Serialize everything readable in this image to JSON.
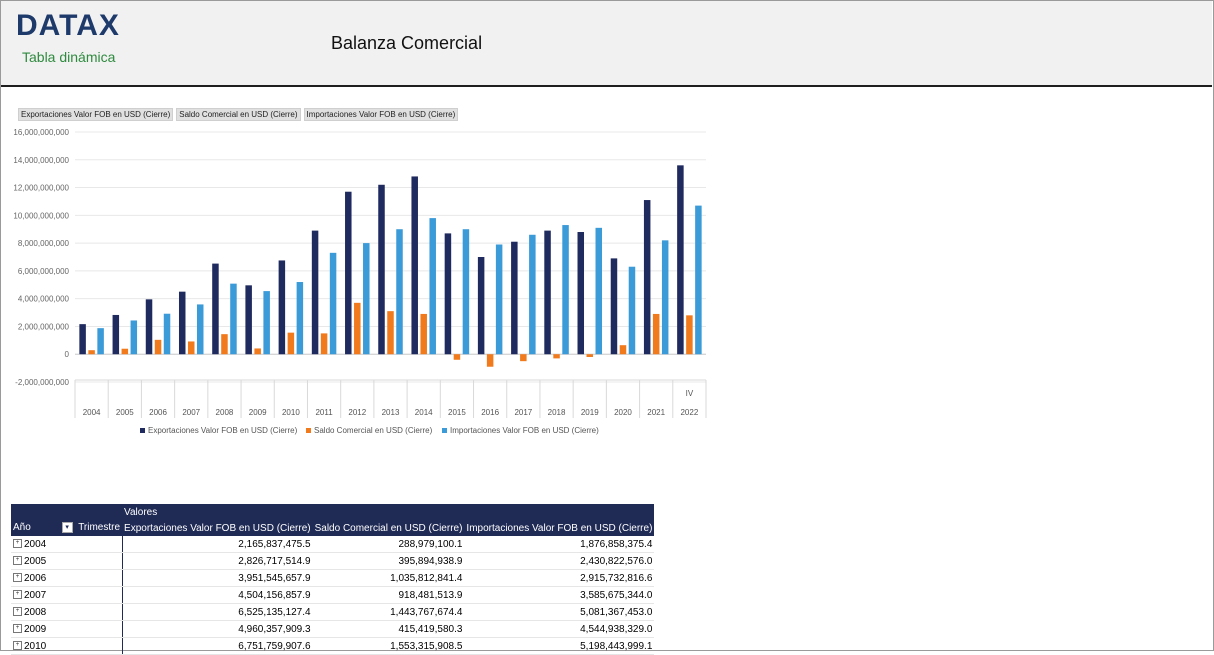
{
  "header": {
    "logo": "DATAX",
    "subtitle": "Tabla dinámica",
    "title": "Balanza Comercial"
  },
  "field_buttons": [
    "Exportaciones Valor FOB en USD (Cierre)",
    "Saldo Comercial en USD (Cierre)",
    "Importaciones Valor FOB en USD (Cierre)"
  ],
  "chart_data": {
    "type": "bar",
    "title": "",
    "xlabel": "",
    "ylabel": "",
    "ylim": [
      -2000000000,
      16000000000
    ],
    "yticks": [
      -2000000000,
      0,
      2000000000,
      4000000000,
      6000000000,
      8000000000,
      10000000000,
      12000000000,
      14000000000,
      16000000000
    ],
    "ytick_labels": [
      "-2,000,000,000",
      "0",
      "2,000,000,000",
      "4,000,000,000",
      "6,000,000,000",
      "8,000,000,000",
      "10,000,000,000",
      "12,000,000,000",
      "14,000,000,000",
      "16,000,000,000"
    ],
    "categories": [
      "2004",
      "2005",
      "2006",
      "2007",
      "2008",
      "2009",
      "2010",
      "2011",
      "2012",
      "2013",
      "2014",
      "2015",
      "2016",
      "2017",
      "2018",
      "2019",
      "2020",
      "2021",
      "2022"
    ],
    "last_category_sublabel": "IV",
    "series": [
      {
        "name": "Exportaciones Valor FOB en USD (Cierre)",
        "color": "#1f2a5e",
        "values": [
          2165837475.5,
          2826717514.9,
          3951545657.9,
          4504156857.9,
          6525135127.4,
          4960357909.3,
          6751759907.6,
          8900000000,
          11700000000,
          12200000000,
          12800000000,
          8700000000,
          7000000000,
          8100000000,
          8900000000,
          8800000000,
          6900000000,
          11100000000,
          13600000000
        ]
      },
      {
        "name": "Saldo Comercial en USD (Cierre)",
        "color": "#f07a1c",
        "values": [
          288979100.1,
          395894938.9,
          1035812841.4,
          918481513.9,
          1443767674.4,
          415419580.3,
          1553315908.5,
          1500000000,
          3700000000,
          3100000000,
          2900000000,
          -400000000,
          -900000000,
          -500000000,
          -300000000,
          -200000000,
          650000000,
          2900000000,
          2800000000
        ]
      },
      {
        "name": "Importaciones Valor FOB en USD (Cierre)",
        "color": "#3b9ad8",
        "values": [
          1876858375.4,
          2430822576.0,
          2915732816.6,
          3585675344.0,
          5081367453.0,
          4544938329.0,
          5198443999.1,
          7300000000,
          8000000000,
          9000000000,
          9800000000,
          9000000000,
          7900000000,
          8600000000,
          9300000000,
          9100000000,
          6300000000,
          8200000000,
          10700000000
        ]
      }
    ],
    "legend_position": "bottom",
    "grid": true
  },
  "pivot": {
    "values_label": "Valores",
    "col_year": "Año",
    "col_quarter": "Trimestre",
    "headers": [
      "Exportaciones Valor FOB en USD (Cierre)",
      "Saldo Comercial en USD (Cierre)",
      "Importaciones Valor FOB en USD (Cierre)"
    ],
    "rows": [
      {
        "year": "2004",
        "exp": "2,165,837,475.5",
        "saldo": "288,979,100.1",
        "imp": "1,876,858,375.4"
      },
      {
        "year": "2005",
        "exp": "2,826,717,514.9",
        "saldo": "395,894,938.9",
        "imp": "2,430,822,576.0"
      },
      {
        "year": "2006",
        "exp": "3,951,545,657.9",
        "saldo": "1,035,812,841.4",
        "imp": "2,915,732,816.6"
      },
      {
        "year": "2007",
        "exp": "4,504,156,857.9",
        "saldo": "918,481,513.9",
        "imp": "3,585,675,344.0"
      },
      {
        "year": "2008",
        "exp": "6,525,135,127.4",
        "saldo": "1,443,767,674.4",
        "imp": "5,081,367,453.0"
      },
      {
        "year": "2009",
        "exp": "4,960,357,909.3",
        "saldo": "415,419,580.3",
        "imp": "4,544,938,329.0"
      },
      {
        "year": "2010",
        "exp": "6,751,759,907.6",
        "saldo": "1,553,315,908.5",
        "imp": "5,198,443,999.1"
      }
    ]
  }
}
